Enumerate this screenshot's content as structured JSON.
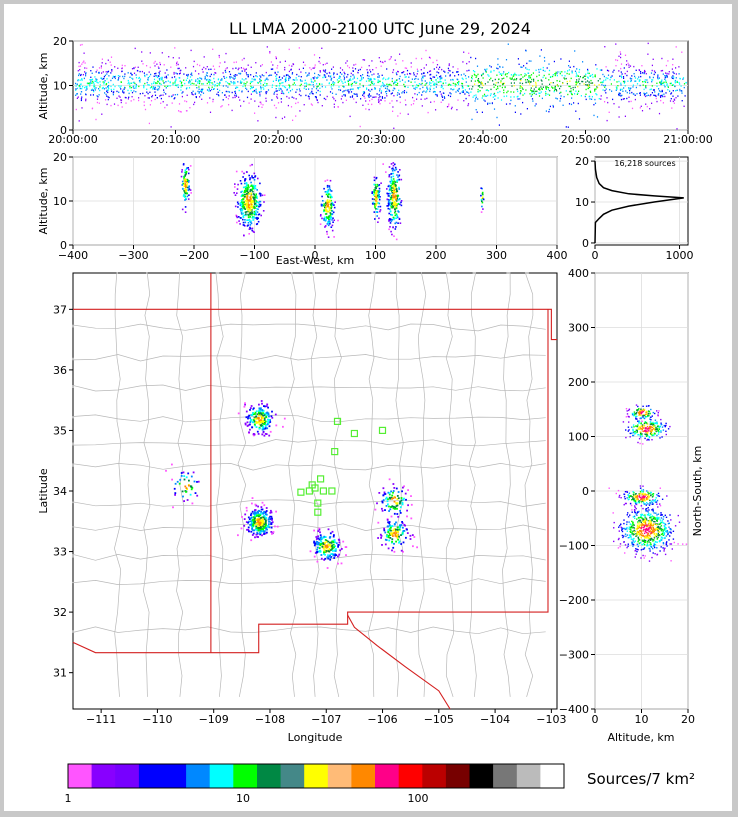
{
  "title": "LL LMA 2000-2100 UTC June 29, 2024",
  "panels": {
    "time_height": {
      "ylabel": "Altitude, km",
      "xticks": [
        "20:00:00",
        "20:10:00",
        "20:20:00",
        "20:30:00",
        "20:40:00",
        "20:50:00",
        "21:00:00"
      ],
      "yticks": [
        0,
        10,
        20
      ]
    },
    "ew_height": {
      "ylabel": "Altitude, km",
      "xlabel": "East-West, km",
      "xticks": [
        -400,
        -300,
        -200,
        -100,
        0,
        100,
        200,
        300,
        400
      ],
      "yticks": [
        0,
        10,
        20
      ]
    },
    "histogram": {
      "sources_label": "16,218 sources",
      "xticks": [
        0,
        1000
      ],
      "yticks": [
        0,
        10,
        20
      ]
    },
    "plan": {
      "xlabel": "Longitude",
      "ylabel": "Latitude",
      "xticks": [
        -111,
        -110,
        -109,
        -108,
        -107,
        -106,
        -105,
        -104,
        -103
      ],
      "yticks": [
        31,
        32,
        33,
        34,
        35,
        36,
        37
      ]
    },
    "ns_height": {
      "xlabel": "Altitude, km",
      "ylabel": "North-South, km",
      "xticks": [
        0,
        10,
        20
      ],
      "yticks": [
        -400,
        -300,
        -200,
        -100,
        0,
        100,
        200,
        300,
        400
      ]
    }
  },
  "colorbar": {
    "label": "Sources/7 km²",
    "ticks": [
      "1",
      "10",
      "100"
    ],
    "colors": [
      "#ff55ff",
      "#8800ff",
      "#7700ff",
      "#0000ff",
      "#0000ff",
      "#0088ff",
      "#00ffff",
      "#00ff00",
      "#008844",
      "#448888",
      "#ffff00",
      "#ffbb77",
      "#ff8800",
      "#ff0088",
      "#ff0000",
      "#bb0000",
      "#770000",
      "#000000",
      "#777777",
      "#bbbbbb",
      "#ffffff"
    ]
  },
  "chart_data": [
    {
      "type": "scatter",
      "name_hint": "time_height",
      "xlim": [
        "20:00:00",
        "21:00:00"
      ],
      "ylim": [
        0,
        20
      ],
      "ylabel": "Altitude, km",
      "bands": [
        {
          "alt_center": 10.5,
          "alt_spread": 4
        }
      ]
    },
    {
      "type": "scatter",
      "name_hint": "ew_height",
      "xlim": [
        -400,
        400
      ],
      "ylim": [
        0,
        20
      ],
      "clusters": [
        {
          "x": -110,
          "z": 10,
          "dx": 18,
          "dz": 5
        },
        {
          "x": 20,
          "z": 9,
          "dx": 10,
          "dz": 4
        },
        {
          "x": 100,
          "z": 11,
          "dx": 6,
          "dz": 4
        },
        {
          "x": 130,
          "z": 11,
          "dx": 10,
          "dz": 6
        },
        {
          "x": -215,
          "z": 14,
          "dx": 6,
          "dz": 4
        },
        {
          "x": 275,
          "z": 11,
          "dx": 2,
          "dz": 2
        }
      ]
    },
    {
      "type": "line",
      "name_hint": "altitude_histogram",
      "xlim": [
        0,
        1100
      ],
      "ylim": [
        0,
        20
      ],
      "points": [
        [
          0,
          0
        ],
        [
          5,
          5
        ],
        [
          50,
          6
        ],
        [
          100,
          7
        ],
        [
          200,
          8
        ],
        [
          400,
          9
        ],
        [
          700,
          10
        ],
        [
          1050,
          11
        ],
        [
          700,
          11.5
        ],
        [
          400,
          12
        ],
        [
          200,
          12.8
        ],
        [
          100,
          13.5
        ],
        [
          50,
          14.5
        ],
        [
          20,
          16
        ],
        [
          5,
          18
        ],
        [
          0,
          20
        ]
      ]
    },
    {
      "type": "scatter",
      "name_hint": "plan_view",
      "xlim": [
        -111.5,
        -102.9
      ],
      "ylim": [
        30.4,
        37.6
      ],
      "clusters": [
        {
          "lon": -108.2,
          "lat": 35.2,
          "n": 60
        },
        {
          "lon": -108.2,
          "lat": 33.5,
          "n": 90
        },
        {
          "lon": -107.0,
          "lat": 33.1,
          "n": 60
        },
        {
          "lon": -105.8,
          "lat": 33.85,
          "n": 30
        },
        {
          "lon": -105.8,
          "lat": 33.3,
          "n": 40
        },
        {
          "lon": -109.5,
          "lat": 34.1,
          "n": 15
        }
      ],
      "stations": [
        [
          -107.2,
          34.05
        ],
        [
          -107.3,
          34.0
        ],
        [
          -107.45,
          33.98
        ],
        [
          -107.1,
          34.2
        ],
        [
          -107.05,
          34.0
        ],
        [
          -107.15,
          33.8
        ],
        [
          -107.25,
          34.1
        ],
        [
          -106.85,
          34.65
        ],
        [
          -106.8,
          35.15
        ],
        [
          -106.5,
          34.95
        ],
        [
          -106.0,
          35.0
        ],
        [
          -107.15,
          33.65
        ],
        [
          -106.9,
          34.0
        ]
      ]
    },
    {
      "type": "scatter",
      "name_hint": "ns_height",
      "xlim": [
        0,
        20
      ],
      "ylim": [
        -400,
        400
      ],
      "clusters": [
        {
          "z": 11,
          "y": 115,
          "dz": 3,
          "dy": 15
        },
        {
          "z": 10,
          "y": 145,
          "dz": 2,
          "dy": 10
        },
        {
          "z": 11,
          "y": -70,
          "dz": 4,
          "dy": 30
        },
        {
          "z": 10,
          "y": -10,
          "dz": 3,
          "dy": 12
        }
      ]
    }
  ]
}
